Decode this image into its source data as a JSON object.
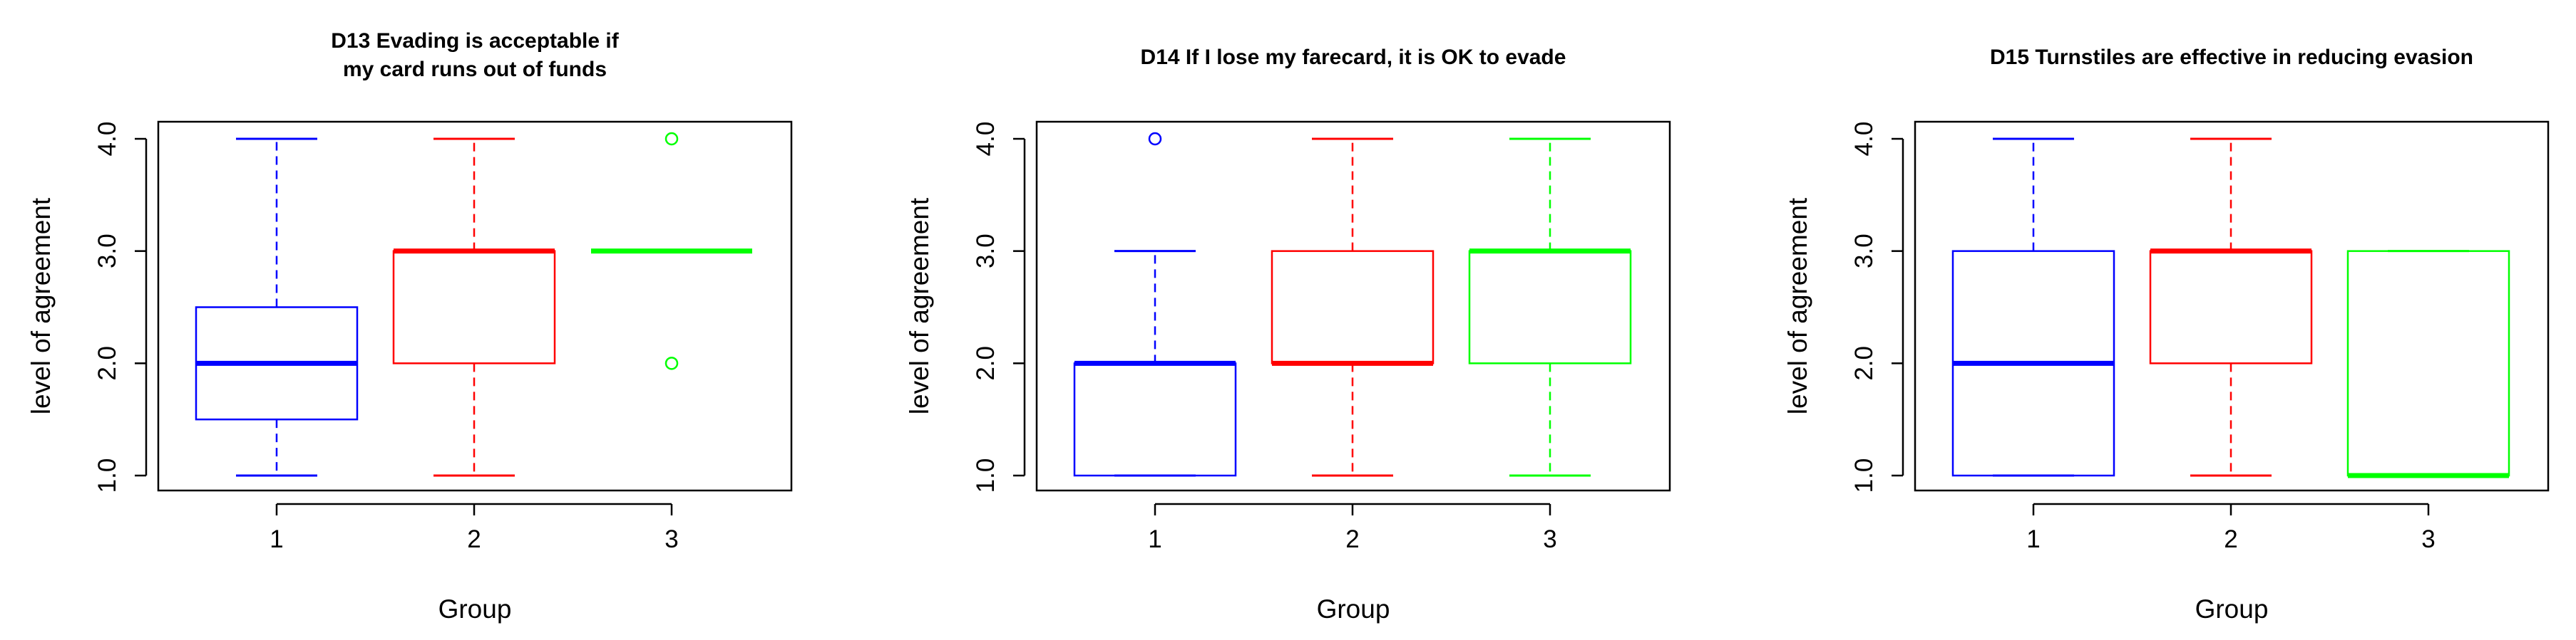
{
  "chart_data": [
    {
      "type": "boxplot",
      "title_lines": [
        "D13 Evading is acceptable if",
        "my card runs out of funds"
      ],
      "xlabel": "Group",
      "ylabel": "level of agreement",
      "ylim": [
        1.0,
        4.0
      ],
      "yticks": [
        1.0,
        2.0,
        3.0,
        4.0
      ],
      "ytick_labels": [
        "1.0",
        "2.0",
        "3.0",
        "4.0"
      ],
      "categories": [
        "1",
        "2",
        "3"
      ],
      "boxes": [
        {
          "group": "1",
          "color": "#0000ff",
          "whisker_low": 1.0,
          "q1": 1.5,
          "median": 2.0,
          "q3": 2.5,
          "whisker_high": 4.0,
          "outliers": []
        },
        {
          "group": "2",
          "color": "#ff0000",
          "whisker_low": 1.0,
          "q1": 2.0,
          "median": 3.0,
          "q3": 3.0,
          "whisker_high": 4.0,
          "outliers": []
        },
        {
          "group": "3",
          "color": "#00ff00",
          "whisker_low": 3.0,
          "q1": 3.0,
          "median": 3.0,
          "q3": 3.0,
          "whisker_high": 3.0,
          "outliers": [
            2.0,
            4.0
          ]
        }
      ]
    },
    {
      "type": "boxplot",
      "title_lines": [
        "D14 If I lose my farecard, it is OK to evade"
      ],
      "xlabel": "Group",
      "ylabel": "level of agreement",
      "ylim": [
        1.0,
        4.0
      ],
      "yticks": [
        1.0,
        2.0,
        3.0,
        4.0
      ],
      "ytick_labels": [
        "1.0",
        "2.0",
        "3.0",
        "4.0"
      ],
      "categories": [
        "1",
        "2",
        "3"
      ],
      "boxes": [
        {
          "group": "1",
          "color": "#0000ff",
          "whisker_low": 1.0,
          "q1": 1.0,
          "median": 2.0,
          "q3": 2.0,
          "whisker_high": 3.0,
          "outliers": [
            4.0
          ]
        },
        {
          "group": "2",
          "color": "#ff0000",
          "whisker_low": 1.0,
          "q1": 2.0,
          "median": 2.0,
          "q3": 3.0,
          "whisker_high": 4.0,
          "outliers": []
        },
        {
          "group": "3",
          "color": "#00ff00",
          "whisker_low": 1.0,
          "q1": 2.0,
          "median": 3.0,
          "q3": 3.0,
          "whisker_high": 4.0,
          "outliers": []
        }
      ]
    },
    {
      "type": "boxplot",
      "title_lines": [
        "D15 Turnstiles are effective in reducing evasion"
      ],
      "xlabel": "Group",
      "ylabel": "level of agreement",
      "ylim": [
        1.0,
        4.0
      ],
      "yticks": [
        1.0,
        2.0,
        3.0,
        4.0
      ],
      "ytick_labels": [
        "1.0",
        "2.0",
        "3.0",
        "4.0"
      ],
      "categories": [
        "1",
        "2",
        "3"
      ],
      "boxes": [
        {
          "group": "1",
          "color": "#0000ff",
          "whisker_low": 1.0,
          "q1": 1.0,
          "median": 2.0,
          "q3": 3.0,
          "whisker_high": 4.0,
          "outliers": []
        },
        {
          "group": "2",
          "color": "#ff0000",
          "whisker_low": 1.0,
          "q1": 2.0,
          "median": 3.0,
          "q3": 3.0,
          "whisker_high": 4.0,
          "outliers": []
        },
        {
          "group": "3",
          "color": "#00ff00",
          "whisker_low": 1.0,
          "q1": 1.0,
          "median": 1.0,
          "q3": 3.0,
          "whisker_high": 3.0,
          "outliers": []
        }
      ]
    }
  ]
}
